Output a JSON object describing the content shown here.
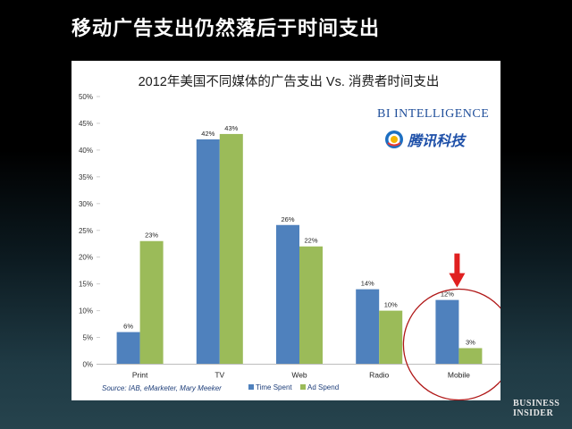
{
  "slide": {
    "title": "移动广告支出仍然落后于时间支出"
  },
  "logos": {
    "bi_intelligence": "BI INTELLIGENCE",
    "tencent": "腾讯科技",
    "business_insider_line1": "BUSINESS",
    "business_insider_line2": "INSIDER"
  },
  "chart_data": {
    "type": "bar",
    "title": "2012年美国不同媒体的广告支出 Vs. 消费者时间支出",
    "categories": [
      "Print",
      "TV",
      "Web",
      "Radio",
      "Mobile"
    ],
    "series": [
      {
        "name": "Time Spent",
        "values": [
          6,
          42,
          26,
          14,
          12
        ],
        "color": "#4f81bd"
      },
      {
        "name": "Ad Spend",
        "values": [
          23,
          43,
          22,
          10,
          3
        ],
        "color": "#9bbb59"
      }
    ],
    "ylim": [
      0,
      50
    ],
    "yticks": [
      0,
      5,
      10,
      15,
      20,
      25,
      30,
      35,
      40,
      45,
      50
    ],
    "ytick_suffix": "%",
    "data_label_suffix": "%",
    "source": "Source:  IAB, eMarketer, Mary Meeker",
    "legend_position": "bottom",
    "highlight": {
      "category": "Mobile",
      "marker": "red-circle-and-arrow",
      "color": "#b01818"
    },
    "background_color": "#ffffff"
  }
}
